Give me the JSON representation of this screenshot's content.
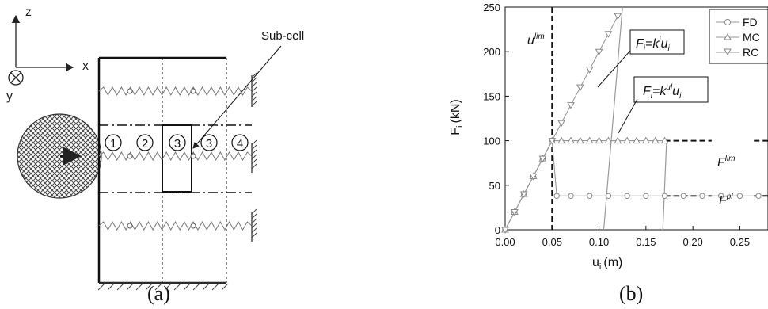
{
  "panel_a": {
    "caption": "(a)",
    "axes": {
      "z": "z",
      "x": "x",
      "y": "y"
    },
    "subcell_label": "Sub-cell",
    "cells": [
      "1",
      "2",
      "3",
      "3",
      "4"
    ]
  },
  "panel_b": {
    "caption": "(b)",
    "ylabel_main": "F",
    "ylabel_sub": "i",
    "ylabel_unit": "(kN)",
    "xlabel_main": "u",
    "xlabel_sub": "i",
    "xlabel_unit": "(m)",
    "ulim_label": "u",
    "ulim_sup": "lim",
    "flim_label": "F",
    "flim_sup": "lim",
    "fpl_label": "F",
    "fpl_sup": "pl",
    "eq1": {
      "a": "F",
      "a_sub": "i",
      "eq": "=k",
      "sup": "i",
      "b": "u",
      "b_sub": "i"
    },
    "eq2": {
      "a": "F",
      "a_sub": "i",
      "eq": "=k",
      "sup": "ul",
      "b": "u",
      "b_sub": "i"
    }
  },
  "chart_data": {
    "type": "line",
    "xlabel": "u_i (m)",
    "ylabel": "F_i (kN)",
    "xlim": [
      0,
      0.28
    ],
    "ylim": [
      0,
      250
    ],
    "x_ticks": [
      "0.00",
      "0.05",
      "0.10",
      "0.15",
      "0.20",
      "0.25"
    ],
    "y_ticks": [
      "0",
      "50",
      "100",
      "150",
      "200",
      "250"
    ],
    "legend": {
      "placement": "top-right",
      "entries": [
        "FD",
        "MC",
        "RC"
      ]
    },
    "u_lim": 0.05,
    "F_lim": 100,
    "F_pl": 38,
    "series": [
      {
        "name": "FD",
        "marker": "circle",
        "x": [
          0,
          0.01,
          0.02,
          0.03,
          0.04,
          0.05,
          0.055,
          0.07,
          0.09,
          0.11,
          0.13,
          0.15,
          0.17,
          0.19,
          0.21,
          0.23,
          0.25,
          0.27
        ],
        "y": [
          0,
          20,
          40,
          60,
          80,
          100,
          38,
          38,
          38,
          38,
          38,
          38,
          38,
          38,
          38,
          38,
          38,
          38
        ]
      },
      {
        "name": "MC",
        "marker": "triangle-up",
        "x": [
          0,
          0.01,
          0.02,
          0.03,
          0.04,
          0.05,
          0.06,
          0.07,
          0.08,
          0.09,
          0.1,
          0.11,
          0.12,
          0.13,
          0.14,
          0.15,
          0.16,
          0.17
        ],
        "y": [
          0,
          20,
          40,
          60,
          80,
          100,
          100,
          100,
          100,
          100,
          100,
          100,
          100,
          100,
          100,
          100,
          100,
          100
        ]
      },
      {
        "name": "RC",
        "marker": "triangle-down",
        "x": [
          0,
          0.01,
          0.02,
          0.03,
          0.04,
          0.05,
          0.06,
          0.07,
          0.08,
          0.09,
          0.1,
          0.11,
          0.12
        ],
        "y": [
          0,
          20,
          40,
          60,
          80,
          100,
          120,
          140,
          160,
          180,
          200,
          220,
          240
        ]
      }
    ],
    "unloading_lines": [
      {
        "x": [
          0.105,
          0.125
        ],
        "y": [
          0,
          250
        ]
      },
      {
        "x": [
          0.168,
          0.172
        ],
        "y": [
          0,
          100
        ]
      }
    ]
  }
}
